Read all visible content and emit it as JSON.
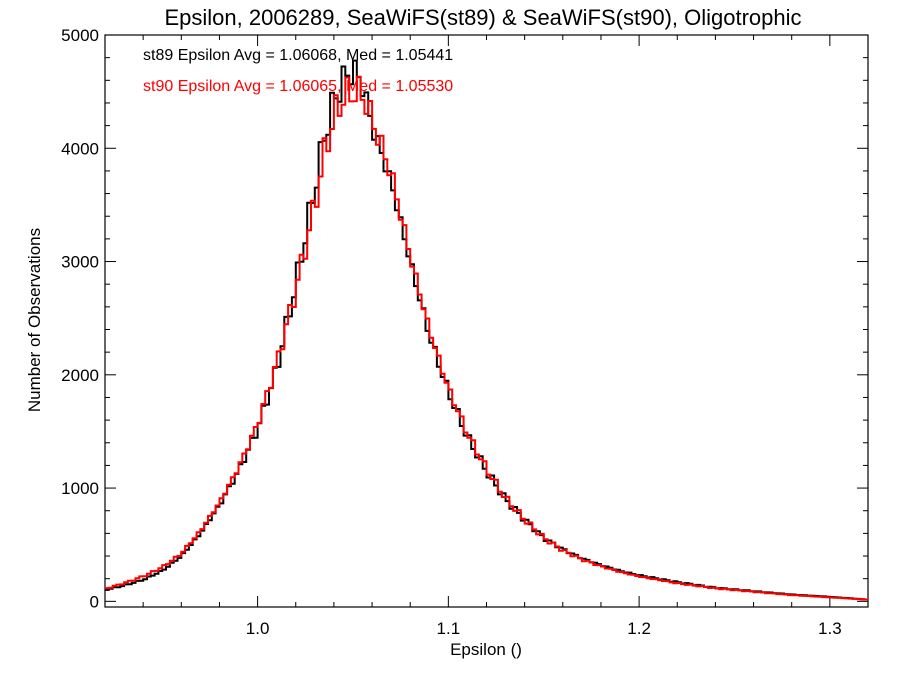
{
  "chart_data": {
    "type": "line",
    "title": "Epsilon, 2006289, SeaWiFS(st89) & SeaWiFS(st90), Oligotrophic",
    "xlabel": "Epsilon ()",
    "ylabel": "Number of Observations",
    "xlim": [
      0.92,
      1.32
    ],
    "ylim": [
      -50,
      5000
    ],
    "xticks": [
      1.0,
      1.1,
      1.2,
      1.3
    ],
    "xtick_labels": [
      "1.0",
      "1.1",
      "1.2",
      "1.3"
    ],
    "yticks": [
      0,
      1000,
      2000,
      3000,
      4000,
      5000
    ],
    "ytick_labels": [
      "0",
      "1000",
      "2000",
      "3000",
      "4000",
      "5000"
    ],
    "grid": false,
    "series": [
      {
        "name": "st89",
        "color": "#000000",
        "stats_label": "st89 Epsilon Avg = 1.06068, Med = 1.05441",
        "x": [
          0.92,
          0.93,
          0.94,
          0.95,
          0.96,
          0.97,
          0.98,
          0.99,
          1.0,
          1.01,
          1.02,
          1.03,
          1.035,
          1.04,
          1.045,
          1.05,
          1.055,
          1.06,
          1.07,
          1.08,
          1.09,
          1.1,
          1.11,
          1.12,
          1.13,
          1.14,
          1.15,
          1.16,
          1.17,
          1.18,
          1.19,
          1.2,
          1.22,
          1.24,
          1.26,
          1.28,
          1.3,
          1.32
        ],
        "y": [
          100,
          140,
          190,
          270,
          400,
          600,
          850,
          1150,
          1520,
          2050,
          2800,
          3650,
          4100,
          4420,
          4600,
          4700,
          4560,
          4200,
          3700,
          3000,
          2350,
          1850,
          1450,
          1150,
          900,
          720,
          560,
          460,
          380,
          320,
          270,
          230,
          170,
          120,
          90,
          60,
          40,
          15
        ]
      },
      {
        "name": "st90",
        "color": "#ff0000",
        "stats_label": "st90 Epsilon Avg = 1.06065, Med = 1.05530",
        "x": [
          0.92,
          0.93,
          0.94,
          0.95,
          0.96,
          0.97,
          0.98,
          0.99,
          1.0,
          1.01,
          1.02,
          1.03,
          1.035,
          1.04,
          1.045,
          1.05,
          1.055,
          1.06,
          1.07,
          1.08,
          1.09,
          1.1,
          1.11,
          1.12,
          1.13,
          1.14,
          1.15,
          1.16,
          1.17,
          1.18,
          1.19,
          1.2,
          1.22,
          1.24,
          1.26,
          1.28,
          1.3,
          1.32
        ],
        "y": [
          110,
          160,
          220,
          300,
          420,
          620,
          870,
          1180,
          1560,
          2100,
          2750,
          3500,
          3950,
          4280,
          4450,
          4500,
          4480,
          4250,
          3780,
          3050,
          2400,
          1880,
          1480,
          1170,
          910,
          720,
          560,
          450,
          370,
          310,
          260,
          220,
          160,
          115,
          85,
          55,
          35,
          15
        ]
      }
    ]
  }
}
